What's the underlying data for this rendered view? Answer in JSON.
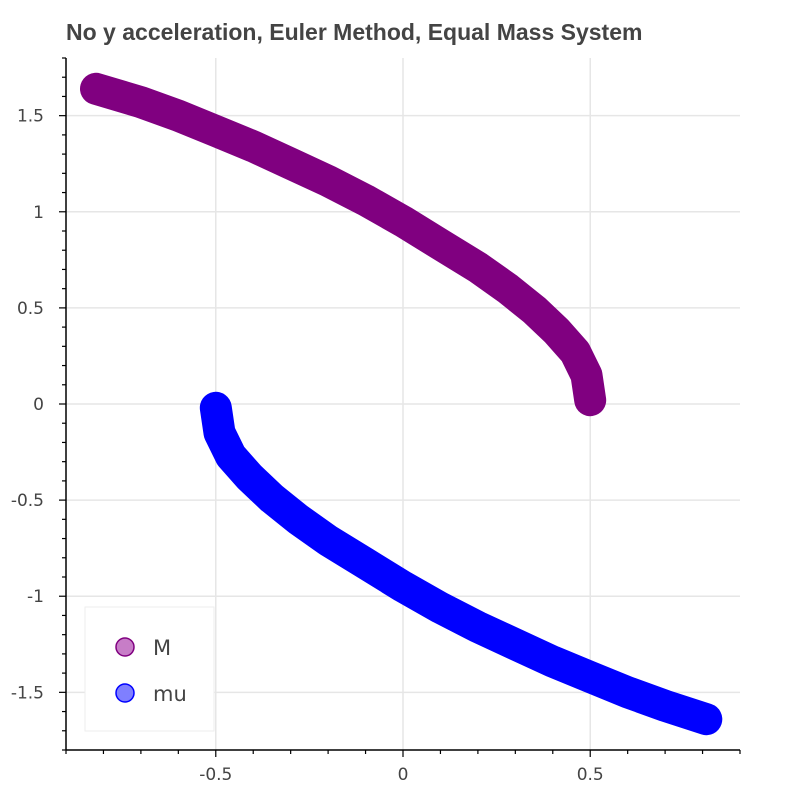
{
  "chart_data": {
    "type": "line",
    "title": "No y acceleration, Euler Method, Equal Mass System",
    "xlabel": "",
    "ylabel": "",
    "xlim": [
      -0.9,
      0.9
    ],
    "ylim": [
      -1.8,
      1.8
    ],
    "x_ticks": [
      -0.5,
      0,
      0.5
    ],
    "y_ticks": [
      -1.5,
      -1,
      -0.5,
      0,
      0.5,
      1,
      1.5
    ],
    "x_tick_labels": [
      "-0.5",
      "0",
      "0.5"
    ],
    "y_tick_labels": [
      "-1.5",
      "-1",
      "-0.5",
      "0",
      "0.5",
      "1",
      "1.5"
    ],
    "grid": true,
    "legend_position": "bottom-left",
    "series": [
      {
        "name": "M",
        "color": "#800080",
        "legend_fill": "#c77dc7",
        "x": [
          0.5,
          0.49,
          0.46,
          0.41,
          0.35,
          0.28,
          0.2,
          0.1,
          0.0,
          -0.1,
          -0.2,
          -0.3,
          -0.4,
          -0.5,
          -0.6,
          -0.7,
          -0.82
        ],
        "y": [
          0.02,
          0.15,
          0.27,
          0.38,
          0.49,
          0.6,
          0.71,
          0.83,
          0.95,
          1.06,
          1.16,
          1.25,
          1.34,
          1.42,
          1.5,
          1.57,
          1.64
        ]
      },
      {
        "name": "mu",
        "color": "#0000ff",
        "legend_fill": "#7f7fff",
        "x": [
          -0.5,
          -0.49,
          -0.46,
          -0.41,
          -0.35,
          -0.28,
          -0.2,
          -0.1,
          0.0,
          0.1,
          0.2,
          0.3,
          0.4,
          0.5,
          0.6,
          0.7,
          0.81
        ],
        "y": [
          -0.02,
          -0.15,
          -0.27,
          -0.38,
          -0.49,
          -0.6,
          -0.71,
          -0.83,
          -0.95,
          -1.06,
          -1.16,
          -1.25,
          -1.34,
          -1.42,
          -1.5,
          -1.57,
          -1.64
        ]
      }
    ]
  }
}
